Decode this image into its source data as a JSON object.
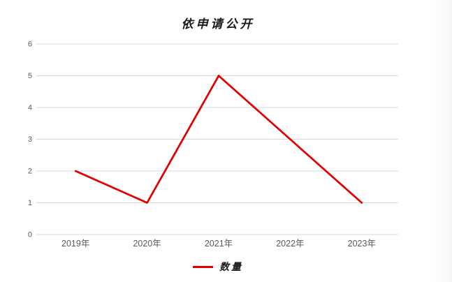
{
  "chart_data": {
    "type": "line",
    "title": "依申请公开",
    "categories": [
      "2019年",
      "2020年",
      "2021年",
      "2022年",
      "2023年"
    ],
    "series": [
      {
        "name": "数量",
        "values": [
          2,
          1,
          5,
          3,
          1
        ],
        "color": "#e00000"
      }
    ],
    "xlabel": "",
    "ylabel": "",
    "ylim": [
      0,
      6
    ],
    "ytick_interval": 1,
    "yticks": [
      0,
      1,
      2,
      3,
      4,
      5,
      6
    ],
    "grid": "horizontal",
    "legend_position": "bottom"
  },
  "colors": {
    "line": "#e00000",
    "gridline": "#d9d9d9",
    "axis_label": "#595959",
    "title_text": "#1a1a1a",
    "background": "#ffffff"
  }
}
